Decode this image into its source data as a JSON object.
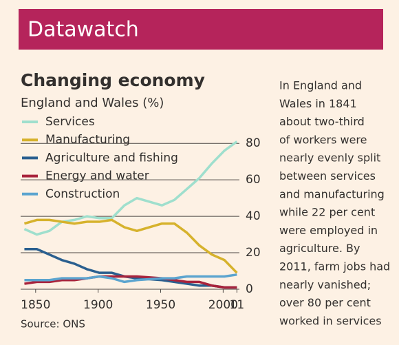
{
  "header": "Datawatch",
  "side_text": [
    "In England and",
    "Wales in 1841",
    "about two-third",
    "of workers were",
    "nearly evenly split",
    "between services",
    "and manufacturing",
    "while 22 per cent",
    "were employed in",
    "agriculture. By",
    "2011, farm jobs had",
    "nearly vanished;",
    "over 80 per cent",
    "worked in services"
  ],
  "chart_data": {
    "type": "line",
    "title": "Changing economy",
    "subtitle": "England and Wales (%)",
    "source": "Source: ONS",
    "x": [
      1841,
      1851,
      1861,
      1871,
      1881,
      1891,
      1901,
      1911,
      1921,
      1931,
      1951,
      1961,
      1971,
      1981,
      1991,
      2001,
      2011
    ],
    "series": [
      {
        "name": "Services",
        "color": "#9fdfcd",
        "values": [
          33,
          30,
          32,
          37,
          38,
          40,
          39,
          39,
          46,
          50,
          46,
          49,
          55,
          61,
          69,
          76,
          81
        ]
      },
      {
        "name": "Manufacturing",
        "color": "#d6b22c",
        "values": [
          36,
          38,
          38,
          37,
          36,
          37,
          37,
          38,
          34,
          32,
          36,
          36,
          31,
          24,
          19,
          16,
          9
        ]
      },
      {
        "name": "Agriculture and fishing",
        "color": "#2a5f8f",
        "values": [
          22,
          22,
          19,
          16,
          14,
          11,
          9,
          9,
          7,
          6,
          5,
          4,
          3,
          2,
          2,
          1,
          1
        ]
      },
      {
        "name": "Energy and water",
        "color": "#a8233c",
        "values": [
          3,
          4,
          4,
          5,
          5,
          6,
          7,
          7,
          7,
          7,
          6,
          5,
          4,
          4,
          2,
          1,
          1
        ]
      },
      {
        "name": "Construction",
        "color": "#5ba4cf",
        "values": [
          5,
          5,
          5,
          6,
          6,
          6,
          7,
          6,
          4,
          5,
          6,
          6,
          7,
          7,
          7,
          7,
          8
        ]
      }
    ],
    "xlim": [
      1838,
      2013
    ],
    "xticks": [
      1850,
      1900,
      1950,
      2000,
      {
        "value": 2011,
        "label": "11"
      }
    ],
    "ylim": [
      0,
      85
    ],
    "yticks": [
      0,
      20,
      40,
      60,
      80
    ],
    "grid": true
  }
}
